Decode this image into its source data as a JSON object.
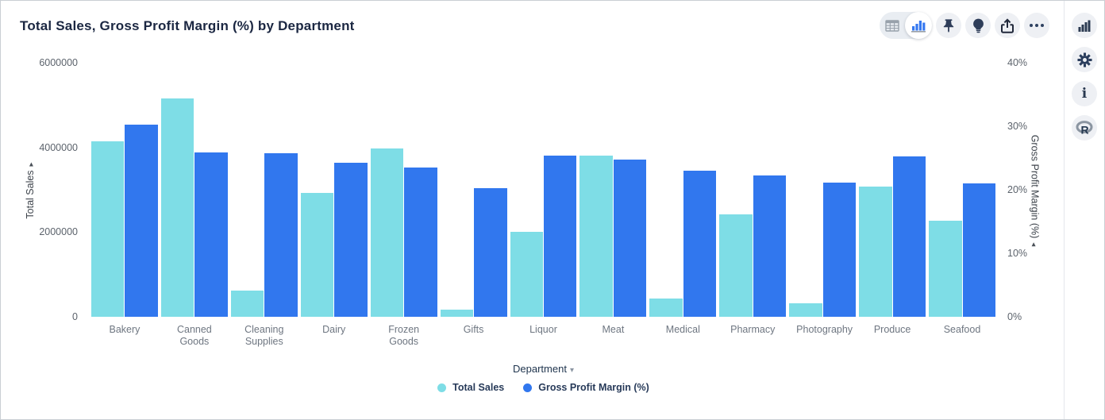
{
  "header": {
    "title": "Total Sales, Gross Profit Margin (%) by Department"
  },
  "toolbar": {
    "icons": [
      "table-view-icon",
      "chart-view-icon",
      "pin-icon",
      "insights-bulb-icon",
      "export-icon",
      "more-options-icon"
    ],
    "active_view": "chart"
  },
  "right_sidebar": {
    "icons": [
      "chart-type-icon",
      "settings-gear-icon",
      "info-icon",
      "r-language-icon"
    ],
    "info_glyph": "i",
    "r_glyph": "R"
  },
  "colors": {
    "total_sales": "#7EDDE6",
    "gross_profit_margin": "#3177EE",
    "accent_blue": "#3578F0",
    "title_text": "#1b2742"
  },
  "xaxis": {
    "label": "Department",
    "dropdown_arrow": "▾"
  },
  "chart_data": {
    "type": "bar",
    "title": "Total Sales, Gross Profit Margin (%) by Department",
    "categories": [
      "Bakery",
      "Canned Goods",
      "Cleaning Supplies",
      "Dairy",
      "Frozen Goods",
      "Gifts",
      "Liquor",
      "Meat",
      "Medical",
      "Pharmacy",
      "Photography",
      "Produce",
      "Seafood"
    ],
    "series": [
      {
        "name": "Total Sales",
        "axis": "left",
        "color": "#7EDDE6",
        "values": [
          4150000,
          5160000,
          620000,
          2920000,
          3980000,
          170000,
          2000000,
          3810000,
          440000,
          2420000,
          320000,
          3070000,
          2260000
        ]
      },
      {
        "name": "Gross Profit Margin (%)",
        "axis": "right",
        "color": "#3177EE",
        "values": [
          30.2,
          25.9,
          25.8,
          24.2,
          23.5,
          20.2,
          25.4,
          24.8,
          23.0,
          22.3,
          21.1,
          25.3,
          21.0
        ]
      }
    ],
    "xlabel": "Department",
    "left_axis": {
      "label": "Total Sales",
      "sort_arrow": "▸",
      "max": 6000000,
      "ticks": [
        {
          "label": "0",
          "value": 0
        },
        {
          "label": "2000000",
          "value": 2000000
        },
        {
          "label": "4000000",
          "value": 4000000
        },
        {
          "label": "6000000",
          "value": 6000000
        }
      ]
    },
    "right_axis": {
      "label": "Gross Profit Margin (%)",
      "sort_arrow": "◂",
      "max": 40,
      "ticks": [
        {
          "label": "0%",
          "value": 0
        },
        {
          "label": "10%",
          "value": 10
        },
        {
          "label": "20%",
          "value": 20
        },
        {
          "label": "30%",
          "value": 30
        },
        {
          "label": "40%",
          "value": 40
        }
      ]
    },
    "legend_position": "bottom",
    "grid": false
  }
}
